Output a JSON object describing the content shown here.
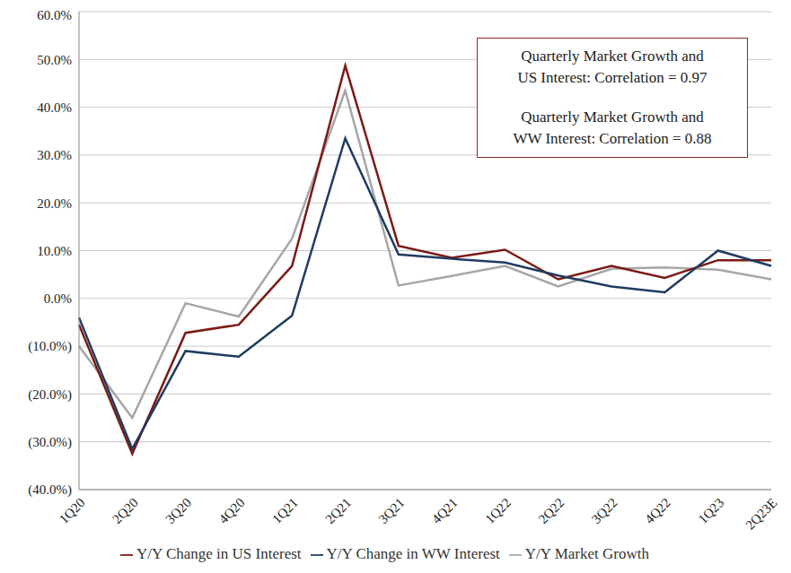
{
  "chart_data": {
    "type": "line",
    "categories": [
      "1Q20",
      "2Q20",
      "3Q20",
      "4Q20",
      "1Q21",
      "2Q21",
      "3Q21",
      "4Q21",
      "1Q22",
      "2Q22",
      "3Q22",
      "4Q22",
      "1Q23",
      "2Q23E"
    ],
    "series": [
      {
        "name": "Y/Y Market Growth",
        "color": "#a6a6a6",
        "values": [
          -10,
          -25,
          -1,
          -3.8,
          12.5,
          43.5,
          2.7,
          4.7,
          6.8,
          2.5,
          6.2,
          6.5,
          6,
          4
        ]
      },
      {
        "name": "Y/Y Change in US Interest",
        "color": "#7b1a14",
        "values": [
          -5.5,
          -32.5,
          -7.2,
          -5.5,
          6.8,
          48.7,
          11,
          8.5,
          10.2,
          4,
          6.8,
          4.3,
          8,
          8
        ]
      },
      {
        "name": "Y/Y Change in WW Interest",
        "color": "#1f3b63",
        "values": [
          -4,
          -31.5,
          -11,
          -12.2,
          -3.6,
          33.5,
          9.2,
          8.3,
          7.5,
          4.8,
          2.5,
          1.3,
          10,
          6.8
        ]
      }
    ],
    "ylim": [
      -40,
      60
    ],
    "yticks": [
      {
        "value": -40,
        "label": "(40.0%)"
      },
      {
        "value": -30,
        "label": "(30.0%)"
      },
      {
        "value": -20,
        "label": "(20.0%)"
      },
      {
        "value": -10,
        "label": "(10.0%)"
      },
      {
        "value": 0,
        "label": "0.0%"
      },
      {
        "value": 10,
        "label": "10.0%"
      },
      {
        "value": 20,
        "label": "20.0%"
      },
      {
        "value": 30,
        "label": "30.0%"
      },
      {
        "value": 40,
        "label": "40.0%"
      },
      {
        "value": 50,
        "label": "50.0%"
      },
      {
        "value": 60,
        "label": "60.0%"
      }
    ],
    "grid": true,
    "legend": "bottom",
    "annotations": [
      [
        "Quarterly Market Growth and",
        "US Interest: Correlation = 0.97"
      ],
      [
        "Quarterly Market Growth and",
        "WW Interest: Correlation = 0.88"
      ]
    ]
  }
}
